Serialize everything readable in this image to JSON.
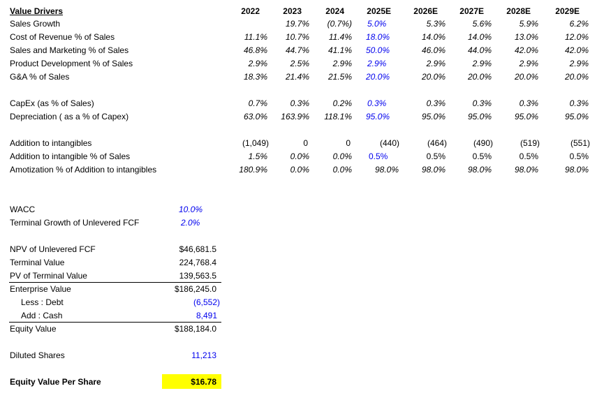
{
  "header": {
    "title": "Value Drivers",
    "years": [
      "2022",
      "2023",
      "2024",
      "2025E",
      "2026E",
      "2027E",
      "2028E",
      "2029E"
    ]
  },
  "rows": [
    {
      "label": "Sales Growth",
      "values": [
        "",
        "19.7%",
        "(0.7%)",
        "5.0%",
        "5.3%",
        "5.6%",
        "5.9%",
        "6.2%"
      ]
    },
    {
      "label": "Cost of Revenue % of Sales",
      "values": [
        "11.1%",
        "10.7%",
        "11.4%",
        "18.0%",
        "14.0%",
        "14.0%",
        "13.0%",
        "12.0%"
      ]
    },
    {
      "label": "Sales and Marketing % of Sales",
      "values": [
        "46.8%",
        "44.7%",
        "41.1%",
        "50.0%",
        "46.0%",
        "44.0%",
        "42.0%",
        "42.0%"
      ]
    },
    {
      "label": "Product Development % of Sales",
      "values": [
        "2.9%",
        "2.5%",
        "2.9%",
        "2.9%",
        "2.9%",
        "2.9%",
        "2.9%",
        "2.9%"
      ]
    },
    {
      "label": "G&A % of Sales",
      "values": [
        "18.3%",
        "21.4%",
        "21.5%",
        "20.0%",
        "20.0%",
        "20.0%",
        "20.0%",
        "20.0%"
      ]
    },
    {
      "label": "CapEx (as % of Sales)",
      "values": [
        "0.7%",
        "0.3%",
        "0.2%",
        "0.3%",
        "0.3%",
        "0.3%",
        "0.3%",
        "0.3%"
      ]
    },
    {
      "label": "Depreciation ( as a % of Capex)",
      "values": [
        "63.0%",
        "163.9%",
        "118.1%",
        "95.0%",
        "95.0%",
        "95.0%",
        "95.0%",
        "95.0%"
      ]
    },
    {
      "label": "Addition to intangibles",
      "values": [
        "(1,049)",
        "0",
        "0",
        "(440)",
        "(464)",
        "(490)",
        "(519)",
        "(551)"
      ]
    },
    {
      "label": "Addition to intangible % of Sales",
      "values": [
        "1.5%",
        "0.0%",
        "0.0%",
        "0.5%",
        "0.5%",
        "0.5%",
        "0.5%",
        "0.5%"
      ]
    },
    {
      "label": "Amotization % of Addition to intangibles",
      "values": [
        "180.9%",
        "0.0%",
        "0.0%",
        "98.0%",
        "98.0%",
        "98.0%",
        "98.0%",
        "98.0%"
      ]
    }
  ],
  "assumptions": [
    {
      "label": "WACC",
      "value": "10.0%"
    },
    {
      "label": "Terminal Growth of Unlevered FCF",
      "value": "2.0%"
    }
  ],
  "valuation": [
    {
      "label": "NPV of Unlevered FCF",
      "value": "$46,681.5"
    },
    {
      "label": "Terminal Value",
      "value": "224,768.4"
    },
    {
      "label": "PV of Terminal Value",
      "value": "139,563.5"
    },
    {
      "label": "Enterprise Value",
      "value": "$186,245.0"
    },
    {
      "label": "Less : Debt",
      "value": "(6,552)"
    },
    {
      "label": "Add : Cash",
      "value": "8,491"
    },
    {
      "label": "Equity Value",
      "value": "$188,184.0"
    },
    {
      "label": "Diluted Shares",
      "value": "11,213"
    },
    {
      "label": "Equity Value Per Share",
      "value": "$16.78"
    }
  ],
  "colors": {
    "input": "#0000ee",
    "highlight": "#ffff00"
  }
}
